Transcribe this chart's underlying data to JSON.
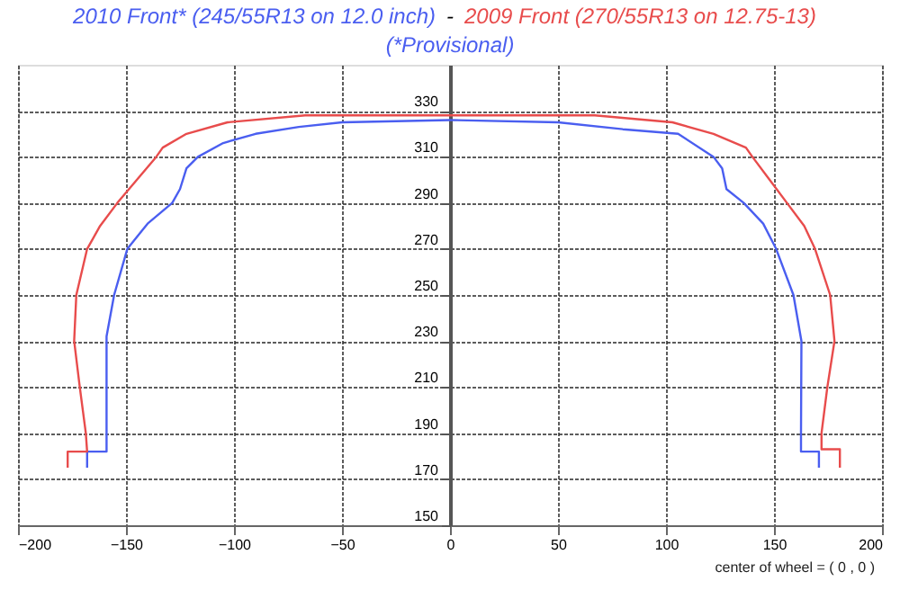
{
  "chart_data": {
    "type": "line",
    "title": "-",
    "series": [
      {
        "name": "2010 Front* (245/55R13 on 12.0 inch)",
        "color": "#4a5ef0",
        "x": [
          -168,
          -168,
          -159,
          -159,
          -159,
          -155.5,
          -149.4,
          -140,
          -128.6,
          -125,
          -122,
          -116.7,
          -105,
          -90,
          -70,
          -50,
          0,
          50,
          80,
          105.6,
          122,
          126,
          128,
          136,
          145,
          151,
          159,
          162.7,
          162.5,
          162.5,
          170.8,
          170.8
        ],
        "values": [
          175,
          182,
          182,
          190,
          232,
          250,
          270,
          281,
          290,
          296,
          305,
          310,
          316,
          320,
          323,
          325,
          326,
          325,
          322,
          320,
          310,
          305,
          296,
          290,
          281,
          270,
          250,
          230,
          190,
          182,
          182,
          175
        ]
      },
      {
        "name": "2009 Front (270/55R13 on 12.75-13)",
        "color": "#e84c4c",
        "x": [
          -177,
          -177,
          -168,
          -168.6,
          -171.4,
          -174,
          -173,
          -168,
          -162,
          -154,
          -145,
          -136,
          -133,
          -122,
          -103,
          -67,
          0,
          67,
          103,
          122,
          137,
          140,
          148,
          156,
          164,
          169,
          176,
          178,
          174.7,
          172,
          172,
          180.5,
          180.5
        ],
        "values": [
          175,
          182,
          182,
          190,
          210,
          230,
          250,
          270,
          280,
          290,
          300,
          310,
          314,
          320,
          325,
          328,
          328,
          328,
          325,
          320,
          314,
          310,
          300,
          290,
          280,
          270,
          250,
          230,
          210,
          190,
          183,
          183,
          175
        ]
      }
    ],
    "annotations": [
      "(*Provisional)",
      "center of wheel = ( 0 , 0 )"
    ],
    "xlim": [
      -200,
      200
    ],
    "xticks": [
      -200,
      -150,
      -100,
      -50,
      0,
      50,
      100,
      150,
      200
    ],
    "ylim": [
      150,
      350
    ],
    "yticks": [
      150,
      170,
      190,
      210,
      230,
      250,
      270,
      290,
      310,
      330
    ],
    "grid": true
  }
}
